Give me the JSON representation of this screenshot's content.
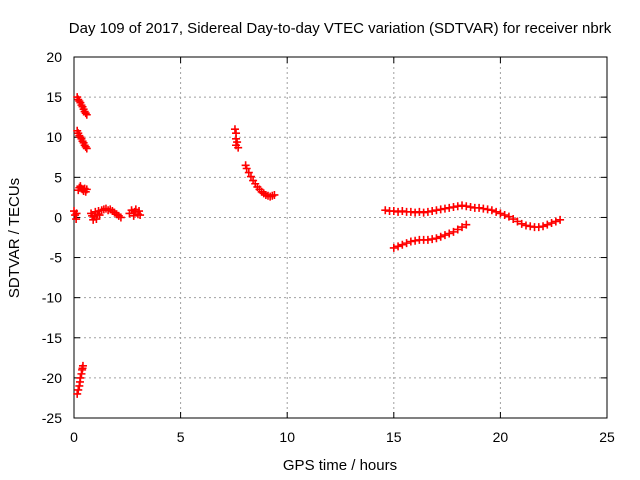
{
  "chart_data": {
    "type": "scatter",
    "title": "Day 109 of 2017, Sidereal Day-to-day VTEC variation (SDTVAR) for receiver nbrk",
    "xlabel": "GPS time / hours",
    "ylabel": "SDTVAR / TECUs",
    "xlim": [
      0,
      25
    ],
    "ylim": [
      -25,
      20
    ],
    "xticks": [
      0,
      5,
      10,
      15,
      20,
      25
    ],
    "yticks": [
      -25,
      -20,
      -15,
      -10,
      -5,
      0,
      5,
      10,
      15,
      20
    ],
    "xtick_labels": [
      "0",
      "5",
      "10",
      "15",
      "20",
      "25"
    ],
    "ytick_labels": [
      "-25",
      "-20",
      "-15",
      "-10",
      "-5",
      "0",
      "5",
      "10",
      "15",
      "20"
    ],
    "grid": true,
    "marker": "plus",
    "color": "#ff0000",
    "series": [
      {
        "points": [
          [
            0.0,
            0.8
          ],
          [
            0.05,
            0.3
          ],
          [
            0.1,
            -0.2
          ],
          [
            0.12,
            0.5
          ],
          [
            0.15,
            15.0
          ],
          [
            0.2,
            14.7
          ],
          [
            0.25,
            14.5
          ],
          [
            0.3,
            14.3
          ],
          [
            0.35,
            14.0
          ],
          [
            0.4,
            13.8
          ],
          [
            0.45,
            13.5
          ],
          [
            0.5,
            13.2
          ],
          [
            0.55,
            13.0
          ],
          [
            0.6,
            12.8
          ],
          [
            0.15,
            10.8
          ],
          [
            0.2,
            10.5
          ],
          [
            0.25,
            10.2
          ],
          [
            0.3,
            10.0
          ],
          [
            0.35,
            9.8
          ],
          [
            0.4,
            9.5
          ],
          [
            0.45,
            9.3
          ],
          [
            0.5,
            9.0
          ],
          [
            0.55,
            8.8
          ],
          [
            0.6,
            8.6
          ],
          [
            0.2,
            3.4
          ],
          [
            0.25,
            3.7
          ],
          [
            0.3,
            3.9
          ],
          [
            0.35,
            3.6
          ],
          [
            0.4,
            3.5
          ],
          [
            0.45,
            3.3
          ],
          [
            0.5,
            3.6
          ],
          [
            0.55,
            3.2
          ],
          [
            0.6,
            3.5
          ],
          [
            0.8,
            0.5
          ],
          [
            0.85,
            0.2
          ],
          [
            0.9,
            -0.3
          ],
          [
            0.95,
            0.1
          ],
          [
            1.0,
            0.7
          ],
          [
            1.05,
            -0.2
          ],
          [
            1.1,
            0.4
          ],
          [
            1.15,
            0.8
          ],
          [
            1.2,
            0.3
          ],
          [
            1.3,
            0.9
          ],
          [
            1.4,
            1.0
          ],
          [
            1.5,
            1.1
          ],
          [
            1.6,
            0.9
          ],
          [
            1.7,
            1.0
          ],
          [
            1.8,
            0.8
          ],
          [
            1.9,
            0.6
          ],
          [
            2.0,
            0.4
          ],
          [
            2.1,
            0.2
          ],
          [
            2.2,
            0.0
          ],
          [
            2.6,
            0.5
          ],
          [
            2.7,
            0.9
          ],
          [
            2.8,
            0.2
          ],
          [
            2.85,
            0.7
          ],
          [
            2.9,
            1.0
          ],
          [
            3.0,
            0.4
          ],
          [
            3.05,
            0.8
          ],
          [
            3.1,
            0.3
          ],
          [
            0.15,
            -22.0
          ],
          [
            0.2,
            -21.5
          ],
          [
            0.25,
            -21.0
          ],
          [
            0.28,
            -20.5
          ],
          [
            0.3,
            -20.0
          ],
          [
            0.35,
            -19.5
          ],
          [
            0.38,
            -19.0
          ],
          [
            0.4,
            -18.8
          ],
          [
            0.42,
            -18.5
          ],
          [
            7.55,
            11.0
          ],
          [
            7.6,
            10.5
          ],
          [
            7.6,
            9.8
          ],
          [
            7.65,
            9.4
          ],
          [
            7.6,
            9.0
          ],
          [
            7.7,
            8.7
          ],
          [
            8.05,
            6.5
          ],
          [
            8.1,
            6.1
          ],
          [
            8.2,
            5.6
          ],
          [
            8.3,
            5.1
          ],
          [
            8.4,
            4.6
          ],
          [
            8.5,
            4.2
          ],
          [
            8.6,
            3.8
          ],
          [
            8.7,
            3.5
          ],
          [
            8.8,
            3.2
          ],
          [
            8.9,
            3.0
          ],
          [
            9.0,
            2.8
          ],
          [
            9.1,
            2.7
          ],
          [
            9.2,
            2.6
          ],
          [
            9.3,
            2.7
          ],
          [
            9.4,
            2.8
          ],
          [
            14.6,
            0.9
          ],
          [
            14.8,
            0.8
          ],
          [
            15.0,
            0.8
          ],
          [
            15.2,
            0.7
          ],
          [
            15.4,
            0.8
          ],
          [
            15.6,
            0.7
          ],
          [
            15.8,
            0.7
          ],
          [
            16.0,
            0.6
          ],
          [
            16.2,
            0.7
          ],
          [
            16.4,
            0.6
          ],
          [
            16.6,
            0.7
          ],
          [
            16.8,
            0.8
          ],
          [
            17.0,
            0.9
          ],
          [
            17.2,
            1.0
          ],
          [
            17.4,
            1.1
          ],
          [
            17.6,
            1.2
          ],
          [
            17.8,
            1.3
          ],
          [
            18.0,
            1.4
          ],
          [
            18.2,
            1.5
          ],
          [
            18.4,
            1.4
          ],
          [
            18.6,
            1.3
          ],
          [
            18.8,
            1.2
          ],
          [
            19.0,
            1.2
          ],
          [
            19.2,
            1.1
          ],
          [
            19.4,
            1.0
          ],
          [
            19.6,
            0.9
          ],
          [
            19.8,
            0.7
          ],
          [
            20.0,
            0.5
          ],
          [
            20.2,
            0.3
          ],
          [
            20.4,
            0.1
          ],
          [
            20.6,
            -0.2
          ],
          [
            20.8,
            -0.5
          ],
          [
            21.0,
            -0.8
          ],
          [
            21.2,
            -1.0
          ],
          [
            21.4,
            -1.1
          ],
          [
            21.6,
            -1.2
          ],
          [
            21.8,
            -1.2
          ],
          [
            22.0,
            -1.1
          ],
          [
            22.2,
            -0.9
          ],
          [
            22.4,
            -0.7
          ],
          [
            22.6,
            -0.5
          ],
          [
            22.8,
            -0.3
          ],
          [
            15.0,
            -3.8
          ],
          [
            15.2,
            -3.6
          ],
          [
            15.4,
            -3.4
          ],
          [
            15.6,
            -3.2
          ],
          [
            15.8,
            -3.0
          ],
          [
            16.0,
            -2.9
          ],
          [
            16.2,
            -2.8
          ],
          [
            16.4,
            -2.8
          ],
          [
            16.6,
            -2.8
          ],
          [
            16.8,
            -2.7
          ],
          [
            17.0,
            -2.6
          ],
          [
            17.2,
            -2.4
          ],
          [
            17.4,
            -2.2
          ],
          [
            17.6,
            -2.0
          ],
          [
            17.8,
            -1.8
          ],
          [
            18.0,
            -1.5
          ],
          [
            18.2,
            -1.2
          ],
          [
            18.4,
            -0.9
          ]
        ]
      }
    ]
  }
}
